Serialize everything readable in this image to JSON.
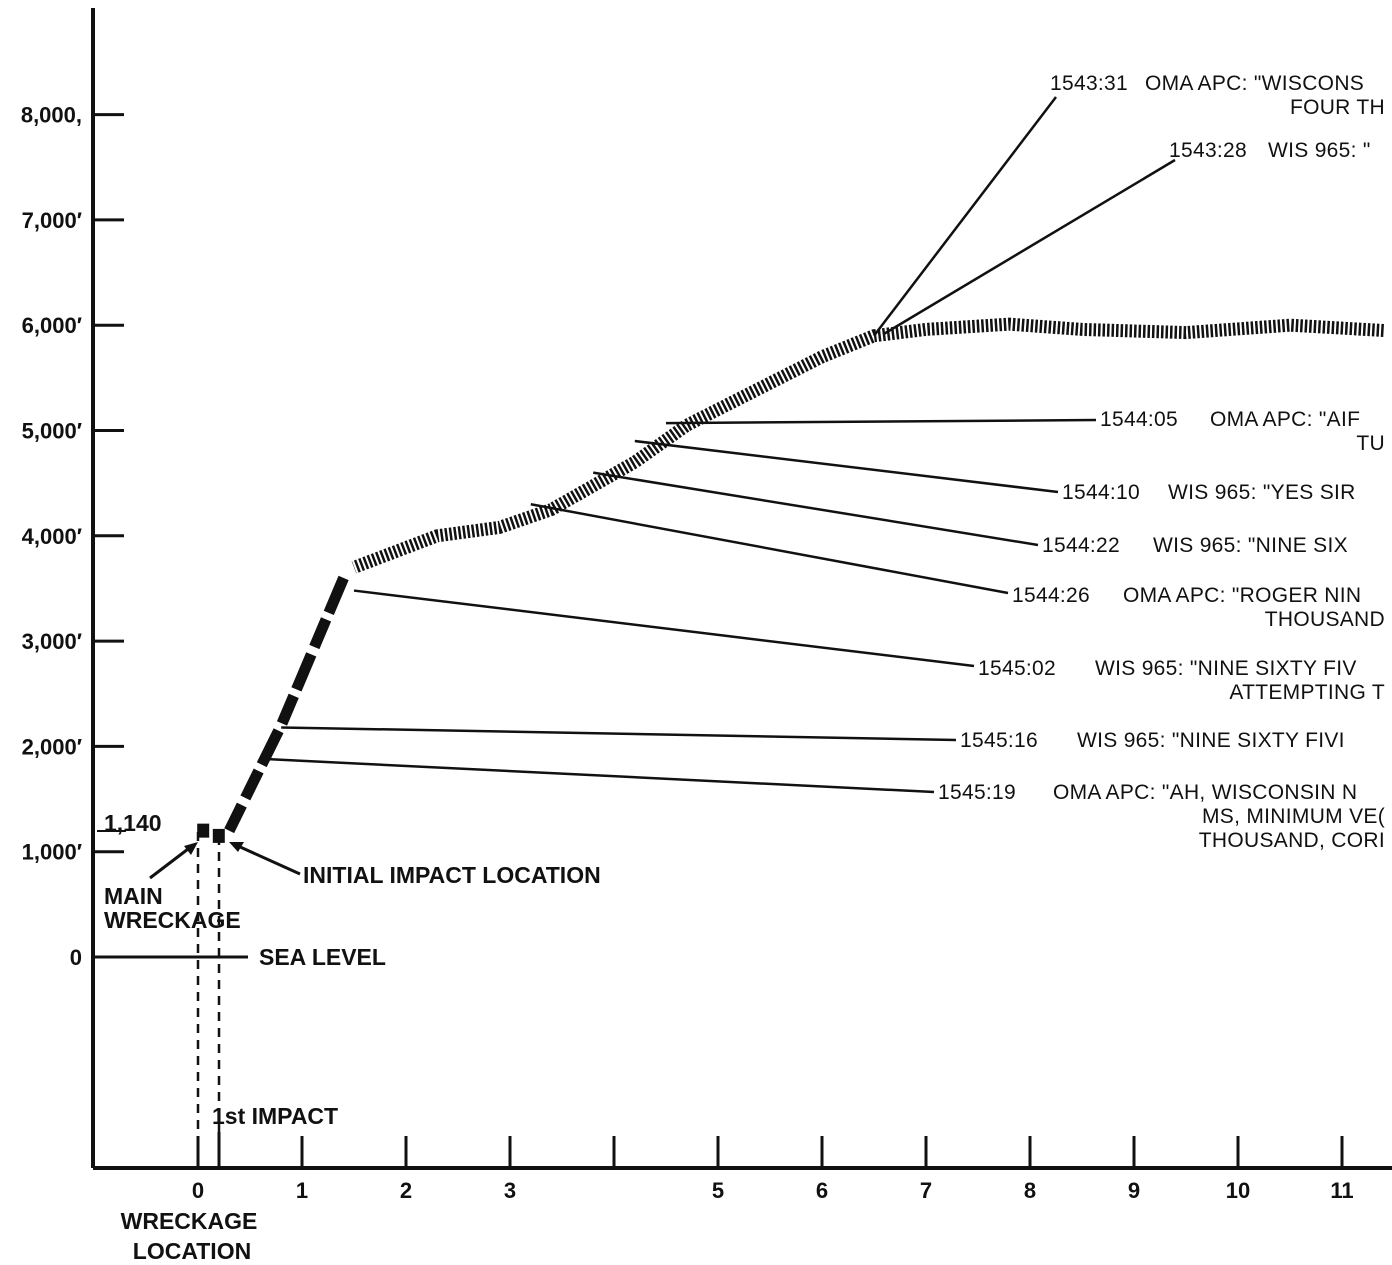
{
  "chart_data": {
    "type": "line",
    "title": "",
    "xlabel": "",
    "ylabel": "",
    "xlim": [
      -1,
      11.4
    ],
    "ylim": [
      -2000,
      9000
    ],
    "y_ticks": [
      {
        "value": 0,
        "label": "0"
      },
      {
        "value": 1000,
        "label": "1,000′"
      },
      {
        "value": 2000,
        "label": "2,000′"
      },
      {
        "value": 3000,
        "label": "3,000′"
      },
      {
        "value": 4000,
        "label": "4,000′"
      },
      {
        "value": 5000,
        "label": "5,000′"
      },
      {
        "value": 6000,
        "label": "6,000′"
      },
      {
        "value": 7000,
        "label": "7,000′"
      },
      {
        "value": 8000,
        "label": "8,000,"
      }
    ],
    "x_ticks": [
      {
        "value": 0,
        "label": "0"
      },
      {
        "value": 1,
        "label": "1"
      },
      {
        "value": 2,
        "label": "2"
      },
      {
        "value": 3,
        "label": "3"
      },
      {
        "value": 4,
        "label": ""
      },
      {
        "value": 5,
        "label": "5"
      },
      {
        "value": 6,
        "label": "6"
      },
      {
        "value": 7,
        "label": "7"
      },
      {
        "value": 8,
        "label": "8"
      },
      {
        "value": 9,
        "label": "9"
      },
      {
        "value": 10,
        "label": "10"
      },
      {
        "value": 11,
        "label": "11"
      }
    ],
    "flight_path_upper": [
      {
        "x": 11.4,
        "y": 5950
      },
      {
        "x": 10.5,
        "y": 6000
      },
      {
        "x": 9.5,
        "y": 5930
      },
      {
        "x": 8.5,
        "y": 5960
      },
      {
        "x": 7.8,
        "y": 6010
      },
      {
        "x": 7.0,
        "y": 5960
      },
      {
        "x": 6.5,
        "y": 5900
      },
      {
        "x": 6.0,
        "y": 5700
      },
      {
        "x": 5.4,
        "y": 5400
      },
      {
        "x": 4.7,
        "y": 5050
      },
      {
        "x": 4.2,
        "y": 4700
      },
      {
        "x": 3.4,
        "y": 4250
      },
      {
        "x": 2.9,
        "y": 4080
      },
      {
        "x": 2.3,
        "y": 4000
      },
      {
        "x": 1.5,
        "y": 3700
      }
    ],
    "flight_path_lower": [
      {
        "x": 1.4,
        "y": 3600
      },
      {
        "x": 0.8,
        "y": 2200
      },
      {
        "x": 0.3,
        "y": 1200
      }
    ],
    "impact_markers": [
      {
        "x": 0.05,
        "y": 1200
      },
      {
        "x": 0.2,
        "y": 1150
      }
    ],
    "annotations": [
      {
        "time": "1543:31",
        "lines": [
          "OMA APC: \"WISCONS",
          "FOUR TH"
        ],
        "at": {
          "x": 6.5,
          "y": 5900
        }
      },
      {
        "time": "1543:28",
        "lines": [
          "WIS 965: \""
        ],
        "at": {
          "x": 6.6,
          "y": 5920
        }
      },
      {
        "time": "1544:05",
        "lines": [
          "OMA APC: \"AIF",
          "TU"
        ],
        "at": {
          "x": 4.5,
          "y": 5070
        }
      },
      {
        "time": "1544:10",
        "lines": [
          "WIS 965: \"YES SIR"
        ],
        "at": {
          "x": 4.2,
          "y": 4900
        }
      },
      {
        "time": "1544:22",
        "lines": [
          "WIS 965: \"NINE SIX"
        ],
        "at": {
          "x": 3.8,
          "y": 4600
        }
      },
      {
        "time": "1544:26",
        "lines": [
          "OMA APC: \"ROGER NIN",
          "THOUSAND"
        ],
        "at": {
          "x": 3.2,
          "y": 4300
        }
      },
      {
        "time": "1545:02",
        "lines": [
          "WIS 965: \"NINE SIXTY FIV",
          "ATTEMPTING T"
        ],
        "at": {
          "x": 1.5,
          "y": 3480
        }
      },
      {
        "time": "1545:16",
        "lines": [
          "WIS 965: \"NINE SIXTY FIVI"
        ],
        "at": {
          "x": 0.8,
          "y": 2180
        }
      },
      {
        "time": "1545:19",
        "lines": [
          "OMA APC: \"AH, WISCONSIN N",
          "MS, MINIMUM VE(",
          "THOUSAND, CORI"
        ],
        "at": {
          "x": 0.65,
          "y": 1880
        }
      }
    ],
    "labels": {
      "altitude_1140": "1,140",
      "main_wreckage": [
        "MAIN",
        "WRECKAGE"
      ],
      "initial_impact": "INITIAL IMPACT LOCATION",
      "sea_level": "SEA LEVEL",
      "first_impact": "1st IMPACT",
      "wreckage_location": [
        "WRECKAGE",
        "LOCATION"
      ]
    },
    "grid": false,
    "legend": "none"
  }
}
